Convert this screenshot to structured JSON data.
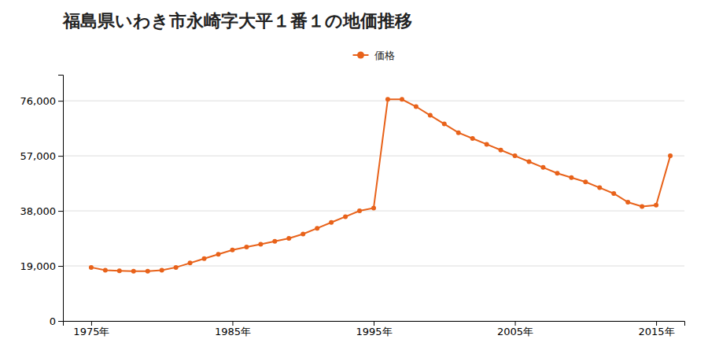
{
  "chart_data": {
    "type": "line",
    "title": "福島県いわき市永崎字大平１番１の地価推移",
    "x": [
      1975,
      1976,
      1977,
      1978,
      1979,
      1980,
      1981,
      1982,
      1983,
      1984,
      1985,
      1986,
      1987,
      1988,
      1989,
      1990,
      1991,
      1992,
      1993,
      1994,
      1995,
      1996,
      1997,
      1998,
      1999,
      2000,
      2001,
      2002,
      2003,
      2004,
      2005,
      2006,
      2007,
      2008,
      2009,
      2010,
      2011,
      2012,
      2013,
      2014,
      2015,
      2016
    ],
    "series": [
      {
        "name": "価格",
        "color": "#E8621A",
        "marker": "circle",
        "values": [
          18500,
          17500,
          17300,
          17200,
          17200,
          17500,
          18500,
          20000,
          21500,
          23000,
          24500,
          25500,
          26500,
          27500,
          28500,
          30000,
          32000,
          34000,
          36000,
          38000,
          39000,
          76500,
          76500,
          74000,
          71000,
          68000,
          65000,
          63000,
          61000,
          59000,
          57000,
          55000,
          53000,
          51000,
          49500,
          48000,
          46000,
          44000,
          41000,
          39500,
          40000,
          57000
        ]
      }
    ],
    "xlim": [
      1973,
      2017
    ],
    "xticks": [
      {
        "value": 1975,
        "label": "1975年"
      },
      {
        "value": 1985,
        "label": "1985年"
      },
      {
        "value": 1995,
        "label": "1995年"
      },
      {
        "value": 2005,
        "label": "2005年"
      },
      {
        "value": 2015,
        "label": "2015年"
      }
    ],
    "ylim": [
      0,
      85000
    ],
    "yticks": [
      0,
      {
        "value": 19000,
        "label": "19,000"
      },
      {
        "value": 38000,
        "label": "38,000"
      },
      {
        "value": 57000,
        "label": "57,000"
      },
      {
        "value": 76000,
        "label": "76,000"
      }
    ],
    "grid": "y",
    "legend": "upper center"
  }
}
